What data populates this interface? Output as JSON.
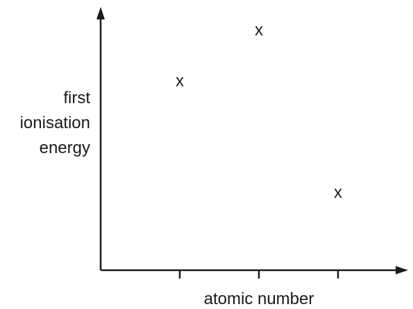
{
  "chart_data": {
    "type": "scatter",
    "title": "",
    "xlabel": "atomic number",
    "ylabel_lines": [
      "first",
      "ionisation",
      "energy"
    ],
    "x_ticks": 3,
    "points": [
      {
        "x": 1,
        "y": 0.72,
        "marker": "x"
      },
      {
        "x": 2,
        "y": 0.93,
        "marker": "x"
      },
      {
        "x": 3,
        "y": 0.26,
        "marker": "x"
      }
    ],
    "xlim": [
      0,
      4
    ],
    "ylim": [
      0,
      1
    ],
    "grid": false,
    "legend": "none",
    "axis_color": "#1a1a1a"
  }
}
